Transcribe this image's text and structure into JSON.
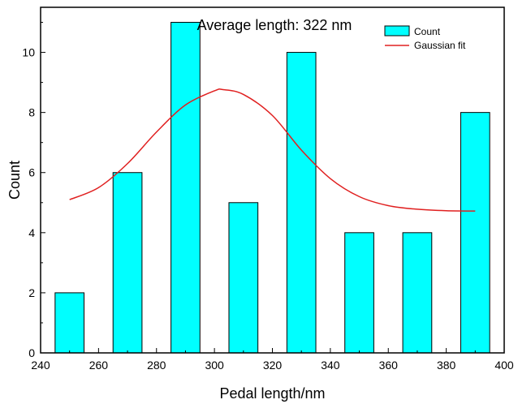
{
  "chart_data": {
    "type": "bar",
    "title": "",
    "annotation": "Average length: 322 nm",
    "xlabel": "Pedal length/nm",
    "ylabel": "Count",
    "xlim": [
      240,
      400
    ],
    "ylim": [
      0,
      11.5
    ],
    "x_ticks": [
      240,
      260,
      280,
      300,
      320,
      340,
      360,
      380,
      400
    ],
    "y_ticks": [
      0,
      2,
      4,
      6,
      8,
      10
    ],
    "grid": false,
    "legend_position": "top-right",
    "bar_width": 10,
    "series": [
      {
        "name": "Count",
        "type": "bar",
        "color": "#00ffff",
        "x": [
          250,
          270,
          290,
          310,
          330,
          350,
          370,
          390
        ],
        "values": [
          2,
          6,
          11,
          5,
          10,
          4,
          4,
          8
        ]
      },
      {
        "name": "Gaussian fit",
        "type": "line",
        "color": "#e02020",
        "x": [
          250,
          260,
          270,
          280,
          290,
          300,
          303,
          310,
          320,
          330,
          340,
          350,
          360,
          370,
          380,
          390
        ],
        "values": [
          5.1,
          5.5,
          6.3,
          7.35,
          8.25,
          8.72,
          8.76,
          8.6,
          7.9,
          6.75,
          5.8,
          5.2,
          4.9,
          4.78,
          4.73,
          4.72
        ]
      }
    ]
  }
}
